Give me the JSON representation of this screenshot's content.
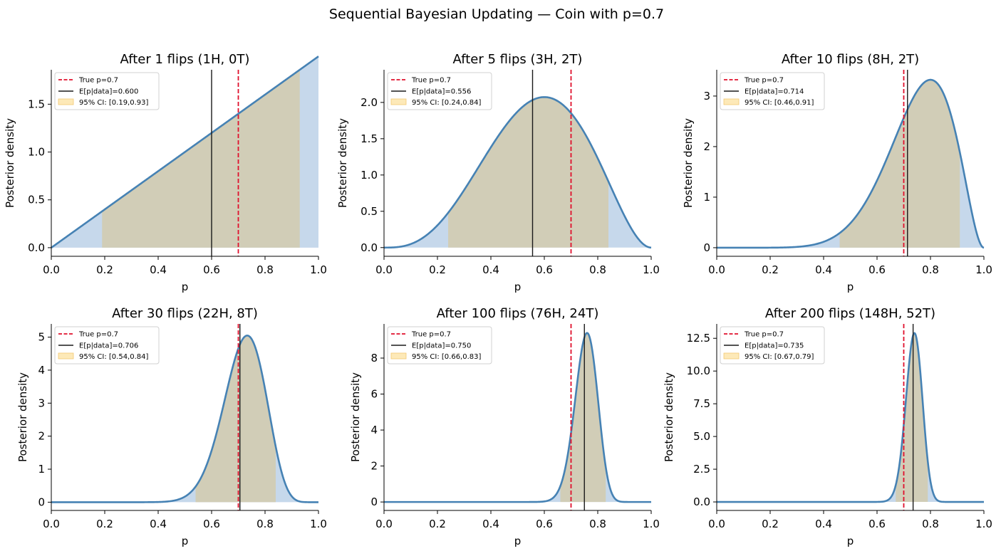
{
  "figure_title": "Sequential Bayesian Updating — Coin with p=0.7",
  "colors": {
    "curve": "#4682b4",
    "fill": "#c6d8eb",
    "ci_fill": "#d1cdb7",
    "true_line": "#e0102c",
    "mean_line": "#1a1a1a",
    "ci_legend_patch": "#fde9b8",
    "ci_legend_edge": "#f3c973",
    "axis": "#000000"
  },
  "chart_data": [
    {
      "type": "area",
      "title": "After 1 flips (1H, 0T)",
      "xlabel": "p",
      "ylabel": "Posterior density",
      "heads": 1,
      "tails": 0,
      "alpha": 2,
      "beta": 1,
      "xlim": [
        0,
        1
      ],
      "ylim": [
        -0.09,
        1.86
      ],
      "xticks": [
        "0.0",
        "0.2",
        "0.4",
        "0.6",
        "0.8",
        "1.0"
      ],
      "xtick_values": [
        0,
        0.2,
        0.4,
        0.6,
        0.8,
        1.0
      ],
      "yticks": [
        "0.0",
        "0.5",
        "1.0",
        "1.5"
      ],
      "ytick_values": [
        0,
        0.5,
        1.0,
        1.5
      ],
      "true_p": 0.7,
      "posterior_mean": 0.6,
      "ci": [
        0.19,
        0.93
      ],
      "legend": [
        "True p=0.7",
        "E[p|data]=0.600",
        "95% CI: [0.19,0.93]"
      ]
    },
    {
      "type": "area",
      "title": "After 5 flips (3H, 2T)",
      "xlabel": "p",
      "ylabel": "Posterior density",
      "heads": 3,
      "tails": 2,
      "alpha": 4,
      "beta": 3,
      "xlim": [
        0,
        1
      ],
      "ylim": [
        -0.12,
        2.45
      ],
      "xticks": [
        "0.0",
        "0.2",
        "0.4",
        "0.6",
        "0.8",
        "1.0"
      ],
      "xtick_values": [
        0,
        0.2,
        0.4,
        0.6,
        0.8,
        1.0
      ],
      "yticks": [
        "0.0",
        "0.5",
        "1.0",
        "1.5",
        "2.0"
      ],
      "ytick_values": [
        0,
        0.5,
        1.0,
        1.5,
        2.0
      ],
      "true_p": 0.7,
      "posterior_mean": 0.556,
      "ci": [
        0.24,
        0.84
      ],
      "legend": [
        "True p=0.7",
        "E[p|data]=0.556",
        "95% CI: [0.24,0.84]"
      ]
    },
    {
      "type": "area",
      "title": "After 10 flips (8H, 2T)",
      "xlabel": "p",
      "ylabel": "Posterior density",
      "heads": 8,
      "tails": 2,
      "alpha": 9,
      "beta": 3,
      "xlim": [
        0,
        1
      ],
      "ylim": [
        -0.17,
        3.52
      ],
      "xticks": [
        "0.0",
        "0.2",
        "0.4",
        "0.6",
        "0.8",
        "1.0"
      ],
      "xtick_values": [
        0,
        0.2,
        0.4,
        0.6,
        0.8,
        1.0
      ],
      "yticks": [
        "0",
        "1",
        "2",
        "3"
      ],
      "ytick_values": [
        0,
        1,
        2,
        3
      ],
      "true_p": 0.7,
      "posterior_mean": 0.714,
      "ci": [
        0.46,
        0.91
      ],
      "legend": [
        "True p=0.7",
        "E[p|data]=0.714",
        "95% CI: [0.46,0.91]"
      ]
    },
    {
      "type": "area",
      "title": "After 30 flips (22H, 8T)",
      "xlabel": "p",
      "ylabel": "Posterior density",
      "heads": 22,
      "tails": 8,
      "alpha": 23,
      "beta": 9,
      "xlim": [
        0,
        1
      ],
      "ylim": [
        -0.25,
        5.4
      ],
      "xticks": [
        "0.0",
        "0.2",
        "0.4",
        "0.6",
        "0.8",
        "1.0"
      ],
      "xtick_values": [
        0,
        0.2,
        0.4,
        0.6,
        0.8,
        1.0
      ],
      "yticks": [
        "0",
        "1",
        "2",
        "3",
        "4",
        "5"
      ],
      "ytick_values": [
        0,
        1,
        2,
        3,
        4,
        5
      ],
      "true_p": 0.7,
      "posterior_mean": 0.706,
      "ci": [
        0.54,
        0.84
      ],
      "legend": [
        "True p=0.7",
        "E[p|data]=0.706",
        "95% CI: [0.54,0.84]"
      ]
    },
    {
      "type": "area",
      "title": "After 100 flips (76H, 24T)",
      "xlabel": "p",
      "ylabel": "Posterior density",
      "heads": 76,
      "tails": 24,
      "alpha": 77,
      "beta": 25,
      "xlim": [
        0,
        1
      ],
      "ylim": [
        -0.47,
        9.9
      ],
      "xticks": [
        "0.0",
        "0.2",
        "0.4",
        "0.6",
        "0.8",
        "1.0"
      ],
      "xtick_values": [
        0,
        0.2,
        0.4,
        0.6,
        0.8,
        1.0
      ],
      "yticks": [
        "0",
        "2",
        "4",
        "6",
        "8"
      ],
      "ytick_values": [
        0,
        2,
        4,
        6,
        8
      ],
      "true_p": 0.7,
      "posterior_mean": 0.75,
      "ci": [
        0.66,
        0.83
      ],
      "legend": [
        "True p=0.7",
        "E[p|data]=0.750",
        "95% CI: [0.66,0.83]"
      ]
    },
    {
      "type": "area",
      "title": "After 200 flips (148H, 52T)",
      "xlabel": "p",
      "ylabel": "Posterior density",
      "heads": 148,
      "tails": 52,
      "alpha": 149,
      "beta": 53,
      "xlim": [
        0,
        1
      ],
      "ylim": [
        -0.65,
        13.6
      ],
      "xticks": [
        "0.0",
        "0.2",
        "0.4",
        "0.6",
        "0.8",
        "1.0"
      ],
      "xtick_values": [
        0,
        0.2,
        0.4,
        0.6,
        0.8,
        1.0
      ],
      "yticks": [
        "0.0",
        "2.5",
        "5.0",
        "7.5",
        "10.0",
        "12.5"
      ],
      "ytick_values": [
        0,
        2.5,
        5.0,
        7.5,
        10.0,
        12.5
      ],
      "true_p": 0.7,
      "posterior_mean": 0.735,
      "ci": [
        0.67,
        0.79
      ],
      "legend": [
        "True p=0.7",
        "E[p|data]=0.735",
        "95% CI: [0.67,0.79]"
      ]
    }
  ]
}
